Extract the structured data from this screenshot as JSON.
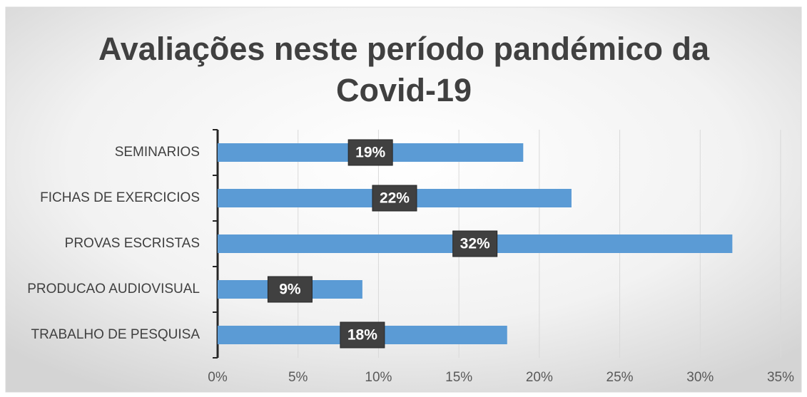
{
  "chart_data": {
    "type": "hbar",
    "title": "Avaliações neste período pandémico da Covid-19",
    "categories": [
      "SEMINARIOS",
      "FICHAS DE EXERCICIOS",
      "PROVAS ESCRISTAS",
      "PRODUCAO AUDIOVISUAL",
      "TRABALHO DE PESQUISA"
    ],
    "values": [
      19,
      22,
      32,
      9,
      18
    ],
    "value_labels": [
      "19%",
      "22%",
      "32%",
      "9%",
      "18%"
    ],
    "color": "#5b9bd5",
    "xlim": [
      0,
      35
    ],
    "xticks": [
      {
        "value": 0,
        "label": "0%"
      },
      {
        "value": 5,
        "label": "5%"
      },
      {
        "value": 10,
        "label": "10%"
      },
      {
        "value": 15,
        "label": "15%"
      },
      {
        "value": 20,
        "label": "20%"
      },
      {
        "value": 25,
        "label": "25%"
      },
      {
        "value": 30,
        "label": "30%"
      },
      {
        "value": 35,
        "label": "35%"
      }
    ],
    "grid": true
  }
}
